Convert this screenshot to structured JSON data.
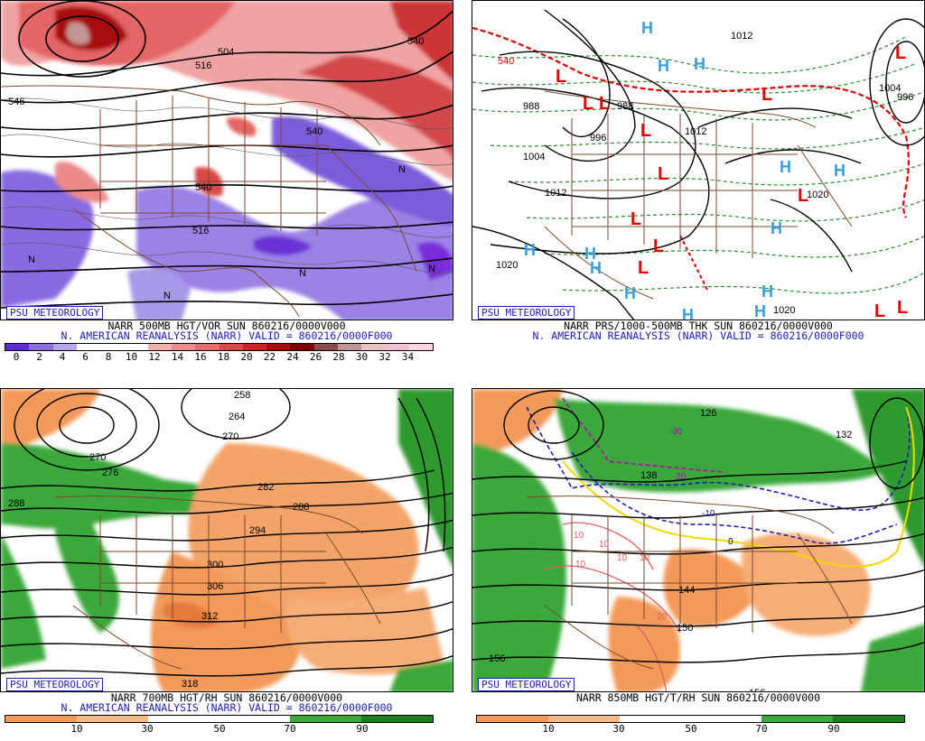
{
  "psu_label": "PSU METEOROLOGY",
  "panels": [
    {
      "title_line1": "NARR 500MB HGT/VOR SUN 860216/0000V000",
      "title_line2": "N. AMERICAN REANALYSIS (NARR) VALID = 860216/0000F000",
      "contour_labels": [
        "546",
        "504",
        "516",
        "540",
        "540",
        "540",
        "516",
        "N",
        "N",
        "N",
        "N",
        "N"
      ],
      "colorbar": {
        "colors": [
          "#5d2ad6",
          "#8c6ce0",
          "#b8a6ec",
          "#fff",
          "#fff",
          "#fff",
          "#f3b0b0",
          "#ec8d8d",
          "#e56d6d",
          "#d94848",
          "#c82626",
          "#a60d0d",
          "#7d0000",
          "#8a4c4c",
          "#c29696",
          "#e8c4c4",
          "#f4c0cf",
          "#f7d6de"
        ],
        "ticks": [
          "0",
          "2",
          "4",
          "6",
          "8",
          "10",
          "12",
          "14",
          "16",
          "18",
          "20",
          "22",
          "24",
          "26",
          "28",
          "30",
          "32",
          "34"
        ]
      }
    },
    {
      "title_line1": "NARR PRS/1000-500MB THK SUN 860216/0000V000",
      "title_line2": "N. AMERICAN REANALYSIS (NARR) VALID = 860216/0000F000",
      "contour_labels": [
        "540",
        "988",
        "988",
        "996",
        "1004",
        "1012",
        "1012",
        "1020",
        "1012",
        "1004",
        "996",
        "1020",
        "1020"
      ],
      "highs": [
        "H",
        "H",
        "H",
        "H",
        "H",
        "H",
        "H",
        "H",
        "H",
        "H",
        "H",
        "H",
        "H"
      ],
      "lows": [
        "L",
        "L",
        "L",
        "L",
        "L",
        "L",
        "L",
        "L",
        "L",
        "L",
        "L",
        "L",
        "L"
      ]
    },
    {
      "title_line1": "NARR 700MB HGT/RH SUN 860216/0000V000",
      "title_line2": "N. AMERICAN REANALYSIS (NARR) VALID = 860216/0000F000",
      "contour_labels": [
        "258",
        "264",
        "270",
        "270",
        "276",
        "282",
        "288",
        "288",
        "294",
        "300",
        "306",
        "312",
        "318"
      ],
      "colorbar": {
        "colors": [
          "#f39a5a",
          "#f6ba8a",
          "#ffffff",
          "#ffffff",
          "#3aa83a",
          "#1f7d1f"
        ],
        "ticks": [
          "10",
          "30",
          "50",
          "70",
          "90"
        ]
      }
    },
    {
      "title_line1": "NARR 850MB HGT/T/RH SUN 860216/0000V000",
      "title_line2": "",
      "contour_labels": [
        "126",
        "132",
        "138",
        "144",
        "150",
        "156",
        "156",
        "-30",
        "-20",
        "-10",
        "0",
        "10",
        "10",
        "10",
        "10",
        "10",
        "20"
      ],
      "colorbar": {
        "colors": [
          "#f39a5a",
          "#f6ba8a",
          "#ffffff",
          "#ffffff",
          "#3aa83a",
          "#1f7d1f"
        ],
        "ticks": [
          "10",
          "30",
          "50",
          "70",
          "90"
        ]
      }
    }
  ]
}
